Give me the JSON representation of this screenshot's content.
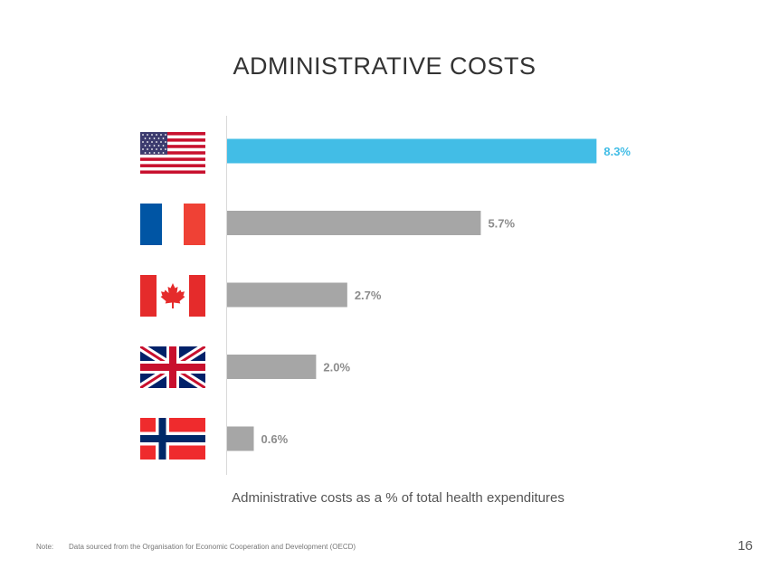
{
  "slide": {
    "note_label": "Note:",
    "note_text": "Data sourced from the Organisation for Economic Cooperation and Development (OECD)",
    "page_number": "16"
  },
  "chart_data": {
    "type": "bar",
    "orientation": "horizontal",
    "title": "ADMINISTRATIVE COSTS",
    "xlabel": "Administrative costs as a % of total health expenditures",
    "ylabel": "",
    "categories": [
      "United States",
      "France",
      "Canada",
      "United Kingdom",
      "Norway"
    ],
    "category_icons": [
      "us-flag-icon",
      "france-flag-icon",
      "canada-flag-icon",
      "uk-flag-icon",
      "norway-flag-icon"
    ],
    "values": [
      8.3,
      5.7,
      2.7,
      2.0,
      0.6
    ],
    "value_labels": [
      "8.3%",
      "5.7%",
      "2.7%",
      "2.0%",
      "0.6%"
    ],
    "xlim": [
      0,
      10
    ],
    "grid": false,
    "highlight_color": "#42BDE6",
    "bar_color": "#A6A6A6"
  }
}
